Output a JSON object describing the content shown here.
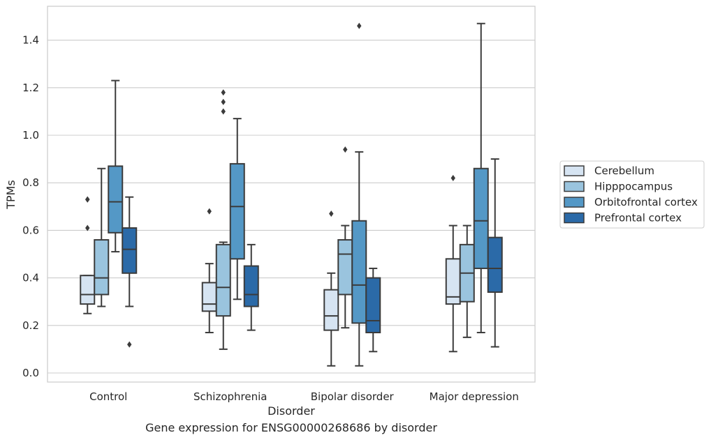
{
  "caption": "Gene expression for ENSG00000268686 by disorder",
  "chart_data": {
    "type": "boxplot",
    "xlabel": "Disorder",
    "ylabel": "TPMs",
    "ylim": [
      -0.04,
      1.54
    ],
    "yticks": [
      0.0,
      0.2,
      0.4,
      0.6,
      0.8,
      1.0,
      1.2,
      1.4
    ],
    "ytick_labels": [
      "0.0",
      "0.2",
      "0.4",
      "0.6",
      "0.8",
      "1.0",
      "1.2",
      "1.4"
    ],
    "grid": "horizontal",
    "legend_position": "right",
    "categories": [
      "Control",
      "Schizophrenia",
      "Bipolar disorder",
      "Major depression"
    ],
    "series": [
      {
        "name": "Cerebellum",
        "color": "#d6e4f2",
        "boxes": [
          {
            "whislo": 0.25,
            "q1": 0.29,
            "med": 0.33,
            "q3": 0.41,
            "whishi": 0.41,
            "fliers": [
              0.73,
              0.73,
              0.61
            ]
          },
          {
            "whislo": 0.17,
            "q1": 0.26,
            "med": 0.29,
            "q3": 0.38,
            "whishi": 0.46,
            "fliers": [
              0.68
            ]
          },
          {
            "whislo": 0.03,
            "q1": 0.18,
            "med": 0.24,
            "q3": 0.35,
            "whishi": 0.42,
            "fliers": [
              0.67
            ]
          },
          {
            "whislo": 0.09,
            "q1": 0.29,
            "med": 0.32,
            "q3": 0.48,
            "whishi": 0.62,
            "fliers": [
              0.82
            ]
          }
        ]
      },
      {
        "name": "Hipppocampus",
        "color": "#9ac4de",
        "boxes": [
          {
            "whislo": 0.28,
            "q1": 0.33,
            "med": 0.4,
            "q3": 0.56,
            "whishi": 0.86,
            "fliers": []
          },
          {
            "whislo": 0.1,
            "q1": 0.24,
            "med": 0.36,
            "q3": 0.54,
            "whishi": 0.55,
            "fliers": [
              1.18,
              1.14,
              1.1
            ]
          },
          {
            "whislo": 0.19,
            "q1": 0.33,
            "med": 0.5,
            "q3": 0.56,
            "whishi": 0.62,
            "fliers": [
              0.94
            ]
          },
          {
            "whislo": 0.15,
            "q1": 0.3,
            "med": 0.42,
            "q3": 0.54,
            "whishi": 0.62,
            "fliers": []
          }
        ]
      },
      {
        "name": "Orbitofrontal cortex",
        "color": "#5498c6",
        "boxes": [
          {
            "whislo": 0.51,
            "q1": 0.59,
            "med": 0.72,
            "q3": 0.87,
            "whishi": 1.23,
            "fliers": []
          },
          {
            "whislo": 0.31,
            "q1": 0.48,
            "med": 0.7,
            "q3": 0.88,
            "whishi": 1.07,
            "fliers": []
          },
          {
            "whislo": 0.03,
            "q1": 0.21,
            "med": 0.37,
            "q3": 0.64,
            "whishi": 0.93,
            "fliers": [
              1.46
            ]
          },
          {
            "whislo": 0.17,
            "q1": 0.44,
            "med": 0.64,
            "q3": 0.86,
            "whishi": 1.47,
            "fliers": []
          }
        ]
      },
      {
        "name": "Prefrontal cortex",
        "color": "#2b6aa8",
        "boxes": [
          {
            "whislo": 0.28,
            "q1": 0.42,
            "med": 0.52,
            "q3": 0.61,
            "whishi": 0.74,
            "fliers": [
              0.12
            ]
          },
          {
            "whislo": 0.18,
            "q1": 0.28,
            "med": 0.33,
            "q3": 0.45,
            "whishi": 0.54,
            "fliers": []
          },
          {
            "whislo": 0.09,
            "q1": 0.17,
            "med": 0.22,
            "q3": 0.4,
            "whishi": 0.44,
            "fliers": []
          },
          {
            "whislo": 0.11,
            "q1": 0.34,
            "med": 0.44,
            "q3": 0.57,
            "whishi": 0.9,
            "fliers": []
          }
        ]
      }
    ]
  }
}
